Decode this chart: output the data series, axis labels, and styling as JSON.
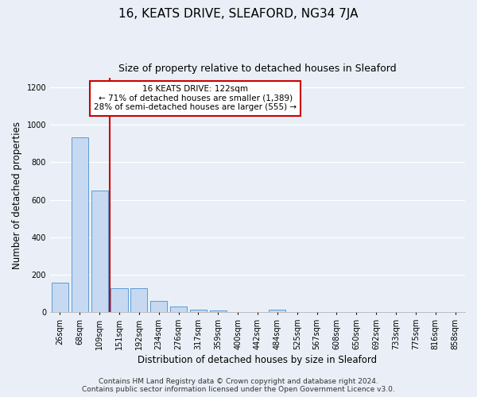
{
  "title": "16, KEATS DRIVE, SLEAFORD, NG34 7JA",
  "subtitle": "Size of property relative to detached houses in Sleaford",
  "xlabel": "Distribution of detached houses by size in Sleaford",
  "ylabel": "Number of detached properties",
  "bar_color": "#c6d9f1",
  "bar_edge_color": "#5b9bd5",
  "bin_labels": [
    "26sqm",
    "68sqm",
    "109sqm",
    "151sqm",
    "192sqm",
    "234sqm",
    "276sqm",
    "317sqm",
    "359sqm",
    "400sqm",
    "442sqm",
    "484sqm",
    "525sqm",
    "567sqm",
    "608sqm",
    "650sqm",
    "692sqm",
    "733sqm",
    "775sqm",
    "816sqm",
    "858sqm"
  ],
  "bar_values": [
    155,
    935,
    650,
    128,
    128,
    57,
    30,
    14,
    10,
    0,
    0,
    14,
    0,
    0,
    0,
    0,
    0,
    0,
    0,
    0,
    0
  ],
  "ylim": [
    0,
    1250
  ],
  "yticks": [
    0,
    200,
    400,
    600,
    800,
    1000,
    1200
  ],
  "property_line_x": 2.5,
  "property_line_color": "#cc0000",
  "annotation_line1": "16 KEATS DRIVE: 122sqm",
  "annotation_line2": "← 71% of detached houses are smaller (1,389)",
  "annotation_line3": "28% of semi-detached houses are larger (555) →",
  "annotation_box_color": "#ffffff",
  "annotation_box_edge": "#cc0000",
  "footer_line1": "Contains HM Land Registry data © Crown copyright and database right 2024.",
  "footer_line2": "Contains public sector information licensed under the Open Government Licence v3.0.",
  "background_color": "#eaeff7",
  "plot_bg_color": "#eaeff7",
  "grid_color": "#ffffff",
  "title_fontsize": 11,
  "subtitle_fontsize": 9,
  "xlabel_fontsize": 8.5,
  "ylabel_fontsize": 8.5,
  "footer_fontsize": 6.5,
  "tick_fontsize": 7,
  "annot_fontsize": 7.5
}
